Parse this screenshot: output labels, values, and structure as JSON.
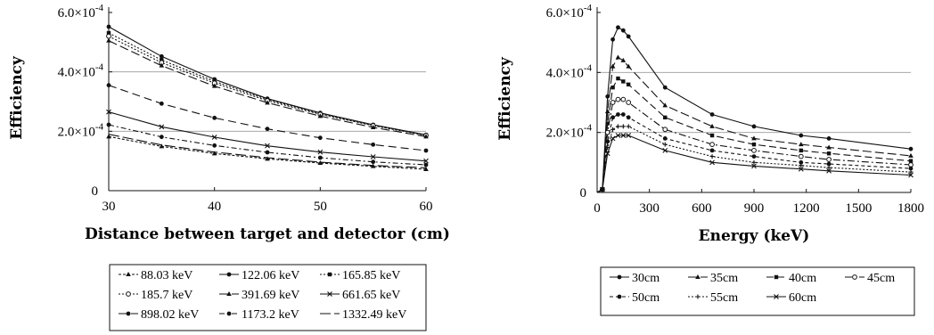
{
  "charts": [
    {
      "ylabel": "Efficiency",
      "xlabel": "Distance between target and detector  (cm)",
      "xticks": [
        "30",
        "40",
        "50",
        "60"
      ],
      "yticks": [
        "0",
        "2.0×10",
        "4.0×10",
        "6.0×10"
      ],
      "ytick_exp": "-4"
    },
    {
      "ylabel": "Efficiency",
      "xlabel": "Energy  (keV)",
      "xticks": [
        "0",
        "300",
        "600",
        "900",
        "1200",
        "1500",
        "1800"
      ],
      "yticks": [
        "0",
        "2.0×10",
        "4.0×10",
        "6.0×10"
      ],
      "ytick_exp": "-4"
    }
  ],
  "chart_data": [
    {
      "type": "line",
      "x": [
        30,
        35,
        40,
        45,
        50,
        55,
        60
      ],
      "xlim": [
        30,
        60
      ],
      "ylim": [
        0,
        0.0006
      ],
      "xlabel": "Distance between target and detector  (cm)",
      "ylabel": "Efficiency",
      "grid": "horizontal",
      "legend_placement": "below",
      "series": [
        {
          "name": "88.03 keV",
          "values": [
            0.000182,
            0.000149,
            0.000125,
            0.000107,
            9.3e-05,
            8.2e-05,
            7.2e-05
          ]
        },
        {
          "name": "122.06 keV",
          "values": [
            0.000552,
            0.000452,
            0.000375,
            0.00031,
            0.000262,
            0.000222,
            0.000188
          ]
        },
        {
          "name": "165.85 keV",
          "values": [
            0.000531,
            0.00044,
            0.000368,
            0.000307,
            0.000259,
            0.00022,
            0.000187
          ]
        },
        {
          "name": "185.7 keV",
          "values": [
            0.00052,
            0.000431,
            0.000362,
            0.000303,
            0.000257,
            0.000219,
            0.000186
          ]
        },
        {
          "name": "391.69 keV",
          "values": [
            0.000505,
            0.000421,
            0.000352,
            0.000296,
            0.000251,
            0.000213,
            0.000182
          ]
        },
        {
          "name": "661.65 keV",
          "values": [
            0.000265,
            0.000215,
            0.00018,
            0.000151,
            0.00013,
            0.000114,
            0.0001
          ]
        },
        {
          "name": "898.02 keV",
          "values": [
            0.000355,
            0.000293,
            0.000245,
            0.000208,
            0.000178,
            0.000155,
            0.000135
          ]
        },
        {
          "name": "1173.2 keV",
          "values": [
            0.000222,
            0.000181,
            0.000152,
            0.000129,
            0.000111,
            9.7e-05,
            8.7e-05
          ]
        },
        {
          "name": "1332.49 keV",
          "values": [
            0.00019,
            0.000154,
            0.00013,
            0.000111,
            9.6e-05,
            8.5e-05,
            7.7e-05
          ]
        }
      ]
    },
    {
      "type": "line",
      "x": [
        0,
        30,
        60,
        90,
        120,
        150,
        180,
        390,
        660,
        900,
        1170,
        1330,
        1800
      ],
      "xlim": [
        0,
        1800
      ],
      "ylim": [
        0,
        0.0006
      ],
      "xlabel": "Energy  (keV)",
      "ylabel": "Efficiency",
      "grid": "horizontal",
      "legend_placement": "below",
      "series": [
        {
          "name": "30cm",
          "values": [
            0.0,
            1e-05,
            0.00032,
            0.00051,
            0.00055,
            0.00054,
            0.00052,
            0.00035,
            0.00026,
            0.00022,
            0.00019,
            0.00018,
            0.000145
          ]
        },
        {
          "name": "35cm",
          "values": [
            0.0,
            1e-05,
            0.00027,
            0.00042,
            0.00045,
            0.00044,
            0.00042,
            0.00029,
            0.00022,
            0.00018,
            0.00016,
            0.00015,
            0.000122
          ]
        },
        {
          "name": "40cm",
          "values": [
            0.0,
            1e-05,
            0.00023,
            0.00035,
            0.00038,
            0.00037,
            0.00036,
            0.00025,
            0.00019,
            0.00016,
            0.00014,
            0.00013,
            0.000105
          ]
        },
        {
          "name": "45cm",
          "values": [
            0.0,
            1e-05,
            0.0002,
            0.0003,
            0.00031,
            0.00031,
            0.0003,
            0.00021,
            0.00016,
            0.00014,
            0.00012,
            0.00011,
            9.2e-05
          ]
        },
        {
          "name": "50cm",
          "values": [
            0.0,
            1e-05,
            0.00017,
            0.00025,
            0.00026,
            0.00026,
            0.00025,
            0.00018,
            0.00014,
            0.00012,
            0.0001,
            9.5e-05,
            8e-05
          ]
        },
        {
          "name": "55cm",
          "values": [
            0.0,
            1e-05,
            0.00015,
            0.00021,
            0.00022,
            0.00022,
            0.00022,
            0.00016,
            0.00012,
            0.0001,
            9e-05,
            8.3e-05,
            6.8e-05
          ]
        },
        {
          "name": "60cm",
          "values": [
            0.0,
            1e-05,
            0.00013,
            0.00018,
            0.00019,
            0.00019,
            0.00019,
            0.00014,
            0.0001,
            8.8e-05,
            7.8e-05,
            7.2e-05,
            5.8e-05
          ]
        }
      ]
    }
  ]
}
